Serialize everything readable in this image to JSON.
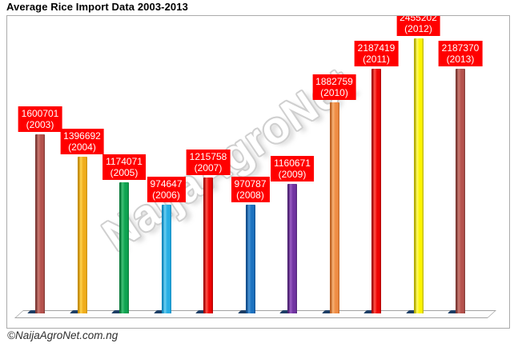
{
  "header": {
    "title": "Average Rice Import Data 2003-2013"
  },
  "watermark": {
    "text": "NaijaAgroNet"
  },
  "footer": {
    "copyright": "©NaijaAgroNet.com.ng"
  },
  "chart_data": {
    "type": "bar",
    "title": "Average Rice Import Data 2003-2013",
    "categories": [
      "2003",
      "2004",
      "2005",
      "2006",
      "2007",
      "2008",
      "2009",
      "2010",
      "2011",
      "2012",
      "2013"
    ],
    "values": [
      1600701,
      1396692,
      1174071,
      974647,
      1215758,
      970787,
      1160671,
      1882759,
      2187419,
      2455202,
      2187370
    ],
    "series": [
      {
        "name": "Average Rice Import",
        "values": [
          1600701,
          1396692,
          1174071,
          974647,
          1215758,
          970787,
          1160671,
          1882759,
          2187419,
          2455202,
          2187370
        ]
      }
    ],
    "xlabel": "",
    "ylabel": "",
    "ylim": [
      0,
      2650000
    ],
    "grid": false,
    "legend": "none",
    "label_format": "{value} ({year})",
    "data_label_style": {
      "background": "#FF0000",
      "text_color": "#FFFFFF"
    },
    "base_shadow_color": "#1E3F66",
    "floor_style": {
      "fill": "#FDFDFD",
      "border": "#A3A3A3"
    },
    "bar_colors": [
      {
        "dark": "#7E3A36",
        "main": "#B5524D",
        "light": "#CA7B72"
      },
      {
        "dark": "#C68E00",
        "main": "#F0AD1B",
        "light": "#FFD34F"
      },
      {
        "dark": "#0A7C3C",
        "main": "#0FA351",
        "light": "#41C277"
      },
      {
        "dark": "#1489BE",
        "main": "#27AEE4",
        "light": "#6FD0F2"
      },
      {
        "dark": "#A80000",
        "main": "#EE0404",
        "light": "#FF554A"
      },
      {
        "dark": "#134F8D",
        "main": "#1C72C0",
        "light": "#4C96D6"
      },
      {
        "dark": "#4F2474",
        "main": "#7134A2",
        "light": "#9A5EC4"
      },
      {
        "dark": "#BE6426",
        "main": "#EF8C44",
        "light": "#F7B377"
      },
      {
        "dark": "#A80000",
        "main": "#EE0404",
        "light": "#FF554A"
      },
      {
        "dark": "#B3AC00",
        "main": "#FBF400",
        "light": "#FFFB66"
      },
      {
        "dark": "#7E3A36",
        "main": "#B5524D",
        "light": "#CA7B72"
      }
    ]
  }
}
